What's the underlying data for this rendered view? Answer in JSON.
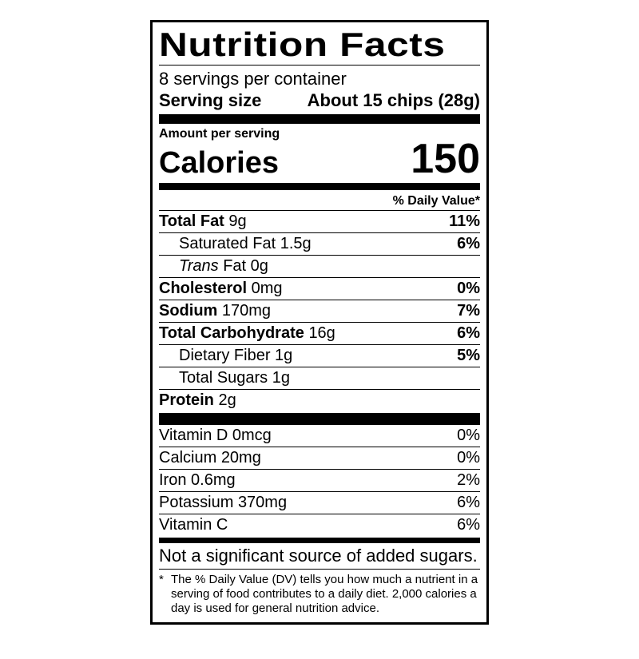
{
  "nutrition_label": {
    "title": "Nutrition Facts",
    "servings_per_container": "8 servings per container",
    "serving_size": {
      "label": "Serving size",
      "value": "About 15 chips (28g)"
    },
    "amount_per_serving": "Amount per serving",
    "calories": {
      "label": "Calories",
      "value": "150"
    },
    "daily_value_header": "% Daily Value*",
    "nutrients": [
      {
        "name": "Total Fat",
        "amount": "9g",
        "dv": "11%"
      },
      {
        "name": "Saturated Fat",
        "amount": "1.5g",
        "dv": "6%"
      },
      {
        "prefix_italic": "Trans",
        "name": "Fat",
        "amount": "0g",
        "dv": ""
      },
      {
        "name": "Cholesterol",
        "amount": "0mg",
        "dv": "0%"
      },
      {
        "name": "Sodium",
        "amount": "170mg",
        "dv": "7%"
      },
      {
        "name": "Total Carbohydrate",
        "amount": "16g",
        "dv": "6%"
      },
      {
        "name": "Dietary Fiber",
        "amount": "1g",
        "dv": "5%"
      },
      {
        "name": "Total Sugars",
        "amount": "1g",
        "dv": ""
      },
      {
        "name": "Protein",
        "amount": "2g",
        "dv": ""
      }
    ],
    "vitamins": [
      {
        "name": "Vitamin D",
        "amount": "0mcg",
        "dv": "0%"
      },
      {
        "name": "Calcium",
        "amount": "20mg",
        "dv": "0%"
      },
      {
        "name": "Iron",
        "amount": "0.6mg",
        "dv": "2%"
      },
      {
        "name": "Potassium",
        "amount": "370mg",
        "dv": "6%"
      },
      {
        "name": "Vitamin C",
        "amount": "",
        "dv": "6%"
      }
    ],
    "not_significant_note": "Not a significant source of added sugars.",
    "footnote_marker": "*",
    "footnote_text": "The % Daily Value (DV) tells you how much a nutrient in a serving of food contributes to a daily diet. 2,000 calories a day is used for general nutrition advice.",
    "colors": {
      "ink": "#000000",
      "paper": "#ffffff"
    }
  }
}
